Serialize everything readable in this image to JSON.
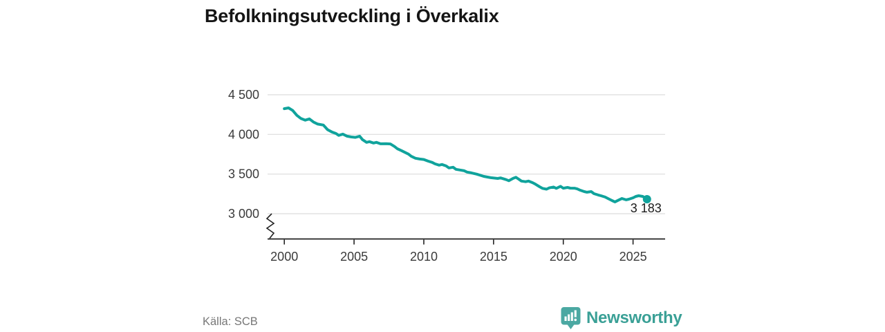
{
  "title": "Befolkningsutveckling i Överkalix",
  "source": "Källa: SCB",
  "logo": {
    "text": "Newsworthy",
    "icon": "newsworthy-pin-barchart-icon",
    "icon_color": "#4BA8A2",
    "text_color": "#3AA096"
  },
  "colors": {
    "line": "#10A39C",
    "gridline": "#DCDCDC",
    "axis": "#222222",
    "tick_label": "#3A3A3A",
    "annotation": "#1A1A1A"
  },
  "chart_data": {
    "type": "line",
    "title": "Befolkningsutveckling i Överkalix",
    "xlabel": "",
    "ylabel": "",
    "grid": "horizontal",
    "axis_break": true,
    "legend": "none",
    "xlim": [
      1998.8,
      2027.3
    ],
    "ylim": [
      2850,
      4560
    ],
    "x_ticks": [
      {
        "label": "2000",
        "year": 2000
      },
      {
        "label": "2005",
        "year": 2005
      },
      {
        "label": "2010",
        "year": 2010
      },
      {
        "label": "2015",
        "year": 2015
      },
      {
        "label": "2020",
        "year": 2020
      },
      {
        "label": "2025",
        "year": 2025
      }
    ],
    "y_ticks": [
      {
        "label": "4 500",
        "value": 4500
      },
      {
        "label": "4 000",
        "value": 4000
      },
      {
        "label": "3 500",
        "value": 3500
      },
      {
        "label": "3 000",
        "value": 3000
      }
    ],
    "end_label": {
      "text": "3 183",
      "year": 2026,
      "value": 3183
    },
    "series": [
      {
        "name": "Befolkning",
        "color": "#10A39C",
        "points": [
          [
            2000.0,
            4325
          ],
          [
            2000.3,
            4334
          ],
          [
            2000.6,
            4302
          ],
          [
            2000.9,
            4240
          ],
          [
            2001.2,
            4200
          ],
          [
            2001.5,
            4180
          ],
          [
            2001.8,
            4196
          ],
          [
            2002.1,
            4155
          ],
          [
            2002.4,
            4130
          ],
          [
            2002.8,
            4118
          ],
          [
            2003.1,
            4060
          ],
          [
            2003.4,
            4032
          ],
          [
            2003.7,
            4012
          ],
          [
            2003.9,
            3988
          ],
          [
            2004.2,
            4004
          ],
          [
            2004.5,
            3978
          ],
          [
            2004.8,
            3968
          ],
          [
            2005.1,
            3963
          ],
          [
            2005.4,
            3978
          ],
          [
            2005.6,
            3935
          ],
          [
            2005.9,
            3900
          ],
          [
            2006.1,
            3909
          ],
          [
            2006.4,
            3891
          ],
          [
            2006.6,
            3900
          ],
          [
            2006.9,
            3882
          ],
          [
            2007.3,
            3883
          ],
          [
            2007.6,
            3880
          ],
          [
            2007.9,
            3848
          ],
          [
            2008.1,
            3820
          ],
          [
            2008.4,
            3795
          ],
          [
            2008.6,
            3778
          ],
          [
            2008.9,
            3752
          ],
          [
            2009.1,
            3725
          ],
          [
            2009.4,
            3699
          ],
          [
            2009.7,
            3690
          ],
          [
            2010.0,
            3684
          ],
          [
            2010.3,
            3664
          ],
          [
            2010.6,
            3647
          ],
          [
            2010.8,
            3629
          ],
          [
            2011.1,
            3612
          ],
          [
            2011.3,
            3621
          ],
          [
            2011.6,
            3603
          ],
          [
            2011.8,
            3577
          ],
          [
            2012.1,
            3586
          ],
          [
            2012.3,
            3560
          ],
          [
            2012.6,
            3551
          ],
          [
            2012.9,
            3542
          ],
          [
            2013.1,
            3525
          ],
          [
            2013.4,
            3515
          ],
          [
            2013.8,
            3499
          ],
          [
            2014.3,
            3471
          ],
          [
            2014.8,
            3454
          ],
          [
            2015.3,
            3445
          ],
          [
            2015.5,
            3452
          ],
          [
            2015.9,
            3430
          ],
          [
            2016.1,
            3416
          ],
          [
            2016.4,
            3446
          ],
          [
            2016.6,
            3460
          ],
          [
            2016.8,
            3436
          ],
          [
            2017.0,
            3412
          ],
          [
            2017.3,
            3404
          ],
          [
            2017.5,
            3412
          ],
          [
            2017.8,
            3392
          ],
          [
            2018.0,
            3372
          ],
          [
            2018.3,
            3340
          ],
          [
            2018.5,
            3320
          ],
          [
            2018.8,
            3310
          ],
          [
            2019.0,
            3326
          ],
          [
            2019.3,
            3337
          ],
          [
            2019.5,
            3320
          ],
          [
            2019.8,
            3345
          ],
          [
            2020.0,
            3322
          ],
          [
            2020.3,
            3331
          ],
          [
            2020.5,
            3323
          ],
          [
            2020.8,
            3322
          ],
          [
            2021.0,
            3313
          ],
          [
            2021.2,
            3297
          ],
          [
            2021.5,
            3279
          ],
          [
            2021.7,
            3271
          ],
          [
            2022.0,
            3279
          ],
          [
            2022.2,
            3253
          ],
          [
            2022.5,
            3236
          ],
          [
            2022.7,
            3227
          ],
          [
            2023.0,
            3210
          ],
          [
            2023.2,
            3192
          ],
          [
            2023.5,
            3166
          ],
          [
            2023.7,
            3149
          ],
          [
            2024.0,
            3175
          ],
          [
            2024.2,
            3192
          ],
          [
            2024.5,
            3175
          ],
          [
            2024.7,
            3183
          ],
          [
            2025.0,
            3201
          ],
          [
            2025.2,
            3218
          ],
          [
            2025.4,
            3227
          ],
          [
            2025.7,
            3218
          ],
          [
            2026.0,
            3183
          ]
        ]
      }
    ]
  }
}
